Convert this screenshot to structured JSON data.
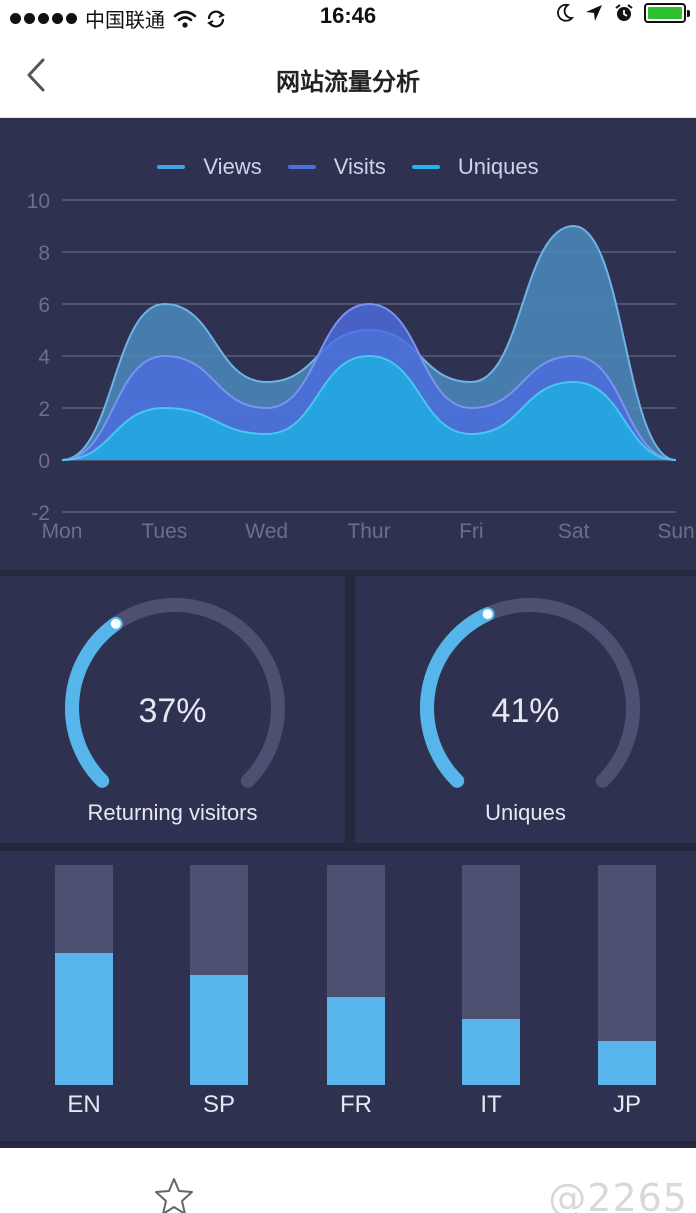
{
  "status_bar": {
    "carrier": "中国联通",
    "time": "16:46"
  },
  "nav": {
    "title": "网站流量分析",
    "back_icon": "chevron-left-icon"
  },
  "colors": {
    "views": "#5a8fd0",
    "visits": "#5272de",
    "uniques": "#2aa8e0",
    "accent": "#56b5ea",
    "track": "#4d5070",
    "panel": "#2f3150",
    "background": "#25283f"
  },
  "chart_data": {
    "type": "area",
    "categories": [
      "Mon",
      "Tues",
      "Wed",
      "Thur",
      "Fri",
      "Sat",
      "Sun"
    ],
    "series": [
      {
        "name": "Views",
        "values": [
          0,
          6,
          3,
          5,
          3,
          9,
          0
        ]
      },
      {
        "name": "Visits",
        "values": [
          0,
          4,
          2,
          6,
          2,
          4,
          0
        ]
      },
      {
        "name": "Uniques",
        "values": [
          0,
          2,
          1,
          4,
          1,
          3,
          0
        ]
      }
    ],
    "yticks": [
      -2,
      0,
      2,
      4,
      6,
      8,
      10
    ],
    "ylim": [
      -2,
      10
    ],
    "grid": true,
    "legend": "top-center",
    "smooth": true
  },
  "gauges": [
    {
      "value": 37,
      "display": "37%",
      "label": "Returning visitors"
    },
    {
      "value": 41,
      "display": "41%",
      "label": "Uniques"
    }
  ],
  "languages": {
    "type": "bar",
    "categories": [
      "EN",
      "SP",
      "FR",
      "IT",
      "JP"
    ],
    "values": [
      60,
      50,
      40,
      30,
      20
    ],
    "max": 100
  },
  "bottom_bar": {
    "favorite_icon": "star-icon",
    "watermark": "@2265"
  }
}
